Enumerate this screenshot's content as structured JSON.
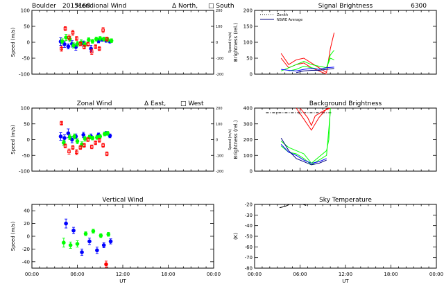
{
  "figure_header": {
    "site": "Boulder",
    "date_code": "2015168"
  },
  "chart_data": [
    {
      "id": "meridional",
      "type": "scatter",
      "title": "Meridional Wind",
      "legend_text": [
        "Δ North,",
        "□ South"
      ],
      "xlabel": "",
      "ylabel": "Speed (m/s)",
      "right_ylabel": "Speed (m/s)",
      "xlim": [
        0,
        24
      ],
      "ylim": [
        -100,
        100
      ],
      "yticks": [
        -100,
        -50,
        0,
        50,
        100
      ],
      "right_ylim": [
        -200,
        200
      ],
      "right_yticks": [
        -200,
        -100,
        0,
        100,
        200
      ],
      "xtick_labels": [],
      "series": [
        {
          "color": "#0000ff",
          "marker": "circle",
          "x": [
            3.8,
            4.3,
            4.8,
            5.3,
            5.8,
            6.8,
            7.8,
            8.8,
            9.3,
            9.8,
            10.3
          ],
          "y": [
            2,
            -6,
            -13,
            -5,
            -15,
            -4,
            -20,
            4,
            8,
            5,
            2
          ],
          "err": [
            12,
            10,
            8,
            10,
            10,
            8,
            10,
            6,
            5,
            5,
            4
          ]
        },
        {
          "color": "#00ff00",
          "marker": "circle",
          "x": [
            4.0,
            4.5,
            5.0,
            5.5,
            6.0,
            6.5,
            7.0,
            7.5,
            8.0,
            8.5,
            9.0,
            9.5,
            10.0,
            10.5
          ],
          "y": [
            3,
            15,
            10,
            -10,
            -5,
            0,
            -6,
            8,
            3,
            10,
            12,
            10,
            8,
            5
          ],
          "err": [
            8,
            10,
            8,
            8,
            8,
            8,
            8,
            6,
            6,
            6,
            6,
            6,
            6,
            6
          ]
        },
        {
          "color": "#ff0000",
          "marker": "square",
          "x": [
            3.9,
            4.4,
            4.9,
            5.4,
            5.9,
            6.4,
            6.9,
            7.4,
            7.9,
            8.4,
            8.9,
            9.4,
            9.9
          ],
          "y": [
            -20,
            43,
            15,
            30,
            12,
            -5,
            -15,
            -6,
            -30,
            -14,
            -20,
            38,
            10
          ],
          "err": [
            8,
            6,
            8,
            8,
            6,
            6,
            6,
            6,
            8,
            6,
            6,
            8,
            6
          ]
        }
      ]
    },
    {
      "id": "signal",
      "type": "line",
      "title": "Signal Brightness",
      "title_extra": "6300",
      "xlabel": "",
      "ylabel": "Brightness (rel.)",
      "xlim": [
        0,
        24
      ],
      "ylim": [
        0,
        200
      ],
      "yticks": [
        0,
        50,
        100,
        150,
        200
      ],
      "xtick_labels": [],
      "legend": [
        {
          "label": "Zenith",
          "style": "dotted",
          "color": "#000000"
        },
        {
          "label": "NSWE Average",
          "style": "solid",
          "color": "#000080"
        }
      ],
      "series": [
        {
          "color": "#ff0000",
          "x": [
            3.5,
            4.5,
            5.5,
            6.5,
            7.5,
            8.5,
            9.5,
            10.0,
            10.5
          ],
          "y": [
            65,
            30,
            45,
            50,
            35,
            20,
            5,
            80,
            130
          ]
        },
        {
          "color": "#ff0000",
          "x": [
            3.5,
            4.5,
            5.5,
            6.5,
            7.5,
            8.5,
            9.5
          ],
          "y": [
            50,
            20,
            30,
            35,
            20,
            10,
            0
          ]
        },
        {
          "color": "#00ff00",
          "x": [
            3.5,
            4.5,
            5.5,
            6.5,
            7.5,
            8.5,
            9.5,
            10.0,
            10.5
          ],
          "y": [
            10,
            20,
            30,
            40,
            30,
            25,
            20,
            60,
            75
          ]
        },
        {
          "color": "#00ff00",
          "x": [
            4.5,
            5.5,
            6.5,
            7.5,
            8.5,
            9.5,
            10.0,
            10.5
          ],
          "y": [
            10,
            15,
            25,
            20,
            15,
            20,
            50,
            45
          ]
        },
        {
          "color": "#0000ff",
          "x": [
            3.5,
            4.5,
            5.5,
            6.5,
            7.5,
            8.5,
            9.5,
            10.5
          ],
          "y": [
            15,
            12,
            10,
            15,
            18,
            15,
            20,
            22
          ]
        },
        {
          "color": "#000080",
          "x": [
            5.5,
            6.5,
            7.5,
            8.5,
            9.5,
            10.5
          ],
          "y": [
            5,
            10,
            12,
            12,
            15,
            18
          ]
        }
      ]
    },
    {
      "id": "zonal",
      "type": "scatter",
      "title": "Zonal Wind",
      "legend_text": [
        "Δ East,",
        "□ West"
      ],
      "xlabel": "",
      "ylabel": "Speed (m/s)",
      "right_ylabel": "Speed (m/s)",
      "xlim": [
        0,
        24
      ],
      "ylim": [
        -100,
        100
      ],
      "yticks": [
        -100,
        -50,
        0,
        50,
        100
      ],
      "right_ylim": [
        -200,
        200
      ],
      "right_yticks": [
        -200,
        -100,
        0,
        100,
        200
      ],
      "xtick_labels": [],
      "series": [
        {
          "color": "#0000ff",
          "marker": "circle",
          "x": [
            3.8,
            4.3,
            4.8,
            5.3,
            5.8,
            6.8,
            7.8,
            8.8,
            9.8,
            10.3
          ],
          "y": [
            10,
            5,
            20,
            0,
            10,
            15,
            10,
            15,
            20,
            12
          ],
          "err": [
            12,
            10,
            14,
            10,
            8,
            8,
            8,
            6,
            6,
            6
          ]
        },
        {
          "color": "#00ff00",
          "marker": "circle",
          "x": [
            4.2,
            5.0,
            5.6,
            6.0,
            6.6,
            7.0,
            7.6,
            8.0,
            8.6,
            9.0,
            9.6,
            10.0
          ],
          "y": [
            -10,
            8,
            10,
            -5,
            -15,
            3,
            8,
            5,
            7,
            10,
            18,
            20
          ],
          "err": [
            8,
            8,
            8,
            8,
            8,
            8,
            6,
            6,
            6,
            6,
            6,
            6
          ]
        },
        {
          "color": "#ff0000",
          "marker": "square",
          "x": [
            3.9,
            4.4,
            4.9,
            5.4,
            5.9,
            6.4,
            6.9,
            7.4,
            7.9,
            8.4,
            8.9,
            9.4,
            9.9
          ],
          "y": [
            52,
            -20,
            -38,
            -25,
            -40,
            -25,
            -18,
            0,
            -23,
            -10,
            -2,
            -18,
            -45
          ],
          "err": [
            6,
            6,
            8,
            6,
            8,
            6,
            6,
            6,
            6,
            6,
            6,
            6,
            6
          ]
        }
      ]
    },
    {
      "id": "background",
      "type": "line",
      "title": "Background Brightness",
      "xlabel": "",
      "ylabel": "Brightness (rel.)",
      "xlim": [
        0,
        24
      ],
      "ylim": [
        0,
        400
      ],
      "yticks": [
        0,
        100,
        200,
        300,
        400
      ],
      "xtick_labels": [],
      "inline_labels": [
        "z",
        "a",
        "s"
      ],
      "series": [
        {
          "color": "#ff0000",
          "x": [
            5.5,
            6.5,
            7.5,
            8.5,
            9.5,
            10.0
          ],
          "y": [
            400,
            330,
            260,
            340,
            395,
            400
          ]
        },
        {
          "color": "#ff0000",
          "x": [
            6.0,
            7.0,
            7.5,
            8.0,
            9.0,
            10.0
          ],
          "y": [
            400,
            340,
            290,
            350,
            380,
            400
          ]
        },
        {
          "color": "#00ff00",
          "x": [
            3.5,
            4.5,
            5.5,
            6.5,
            7.5,
            8.5,
            9.5,
            9.8,
            10.0
          ],
          "y": [
            190,
            150,
            130,
            110,
            50,
            90,
            130,
            200,
            400
          ]
        },
        {
          "color": "#00ff00",
          "x": [
            3.5,
            4.5,
            5.5,
            6.5,
            7.5,
            8.5,
            9.5,
            10.0
          ],
          "y": [
            160,
            120,
            110,
            80,
            40,
            70,
            100,
            380
          ]
        },
        {
          "color": "#0000ff",
          "x": [
            3.5,
            4.5,
            5.5,
            6.5,
            7.5,
            8.5,
            9.5
          ],
          "y": [
            170,
            120,
            100,
            70,
            50,
            60,
            80
          ]
        },
        {
          "color": "#000080",
          "x": [
            3.5,
            4.5,
            5.5,
            6.5,
            7.5,
            8.5,
            9.5
          ],
          "y": [
            210,
            130,
            80,
            60,
            40,
            50,
            70
          ]
        }
      ]
    },
    {
      "id": "vertical",
      "type": "scatter",
      "title": "Vertical Wind",
      "xlabel": "UT",
      "ylabel": "Speed (m/s)",
      "xlim": [
        0,
        24
      ],
      "ylim": [
        -50,
        50
      ],
      "yticks": [
        -40,
        -20,
        0,
        20,
        40
      ],
      "xtick_labels": [
        "00:00",
        "06:00",
        "12:00",
        "18:00",
        "00:00"
      ],
      "series": [
        {
          "color": "#0000ff",
          "marker": "circle",
          "x": [
            4.5,
            5.5,
            6.6,
            7.6,
            8.6,
            9.5,
            10.4
          ],
          "y": [
            20,
            9,
            -25,
            -8,
            -22,
            -14,
            -8
          ],
          "err": [
            7,
            5,
            5,
            5,
            5,
            4,
            4
          ]
        },
        {
          "color": "#00ff00",
          "marker": "circle",
          "x": [
            4.2,
            5.1,
            6.0,
            7.1,
            8.1,
            9.1,
            10.1
          ],
          "y": [
            -10,
            -14,
            -12,
            4,
            8,
            1,
            3
          ],
          "err": [
            7,
            5,
            5,
            3,
            3,
            3,
            3
          ]
        },
        {
          "color": "#ff0000",
          "marker": "circle",
          "x": [
            9.8
          ],
          "y": [
            -44
          ],
          "err": [
            5
          ]
        }
      ]
    },
    {
      "id": "sky",
      "type": "line",
      "title": "Sky Temperature",
      "xlabel": "UT",
      "ylabel": "(K)",
      "xlim": [
        0,
        24
      ],
      "ylim": [
        -80,
        -20
      ],
      "yticks": [
        -80,
        -70,
        -60,
        -50,
        -40,
        -30,
        -20
      ],
      "xtick_labels": [
        "00:00",
        "06:00",
        "12:00",
        "18:00",
        "00:00"
      ],
      "series": [
        {
          "color": "#000000",
          "x": [
            3.3,
            4.0,
            4.6
          ],
          "y": [
            -23,
            -22,
            -20
          ]
        },
        {
          "color": "#000000",
          "x": [
            6.4,
            6.8
          ],
          "y": [
            -20,
            -21
          ]
        }
      ]
    }
  ]
}
